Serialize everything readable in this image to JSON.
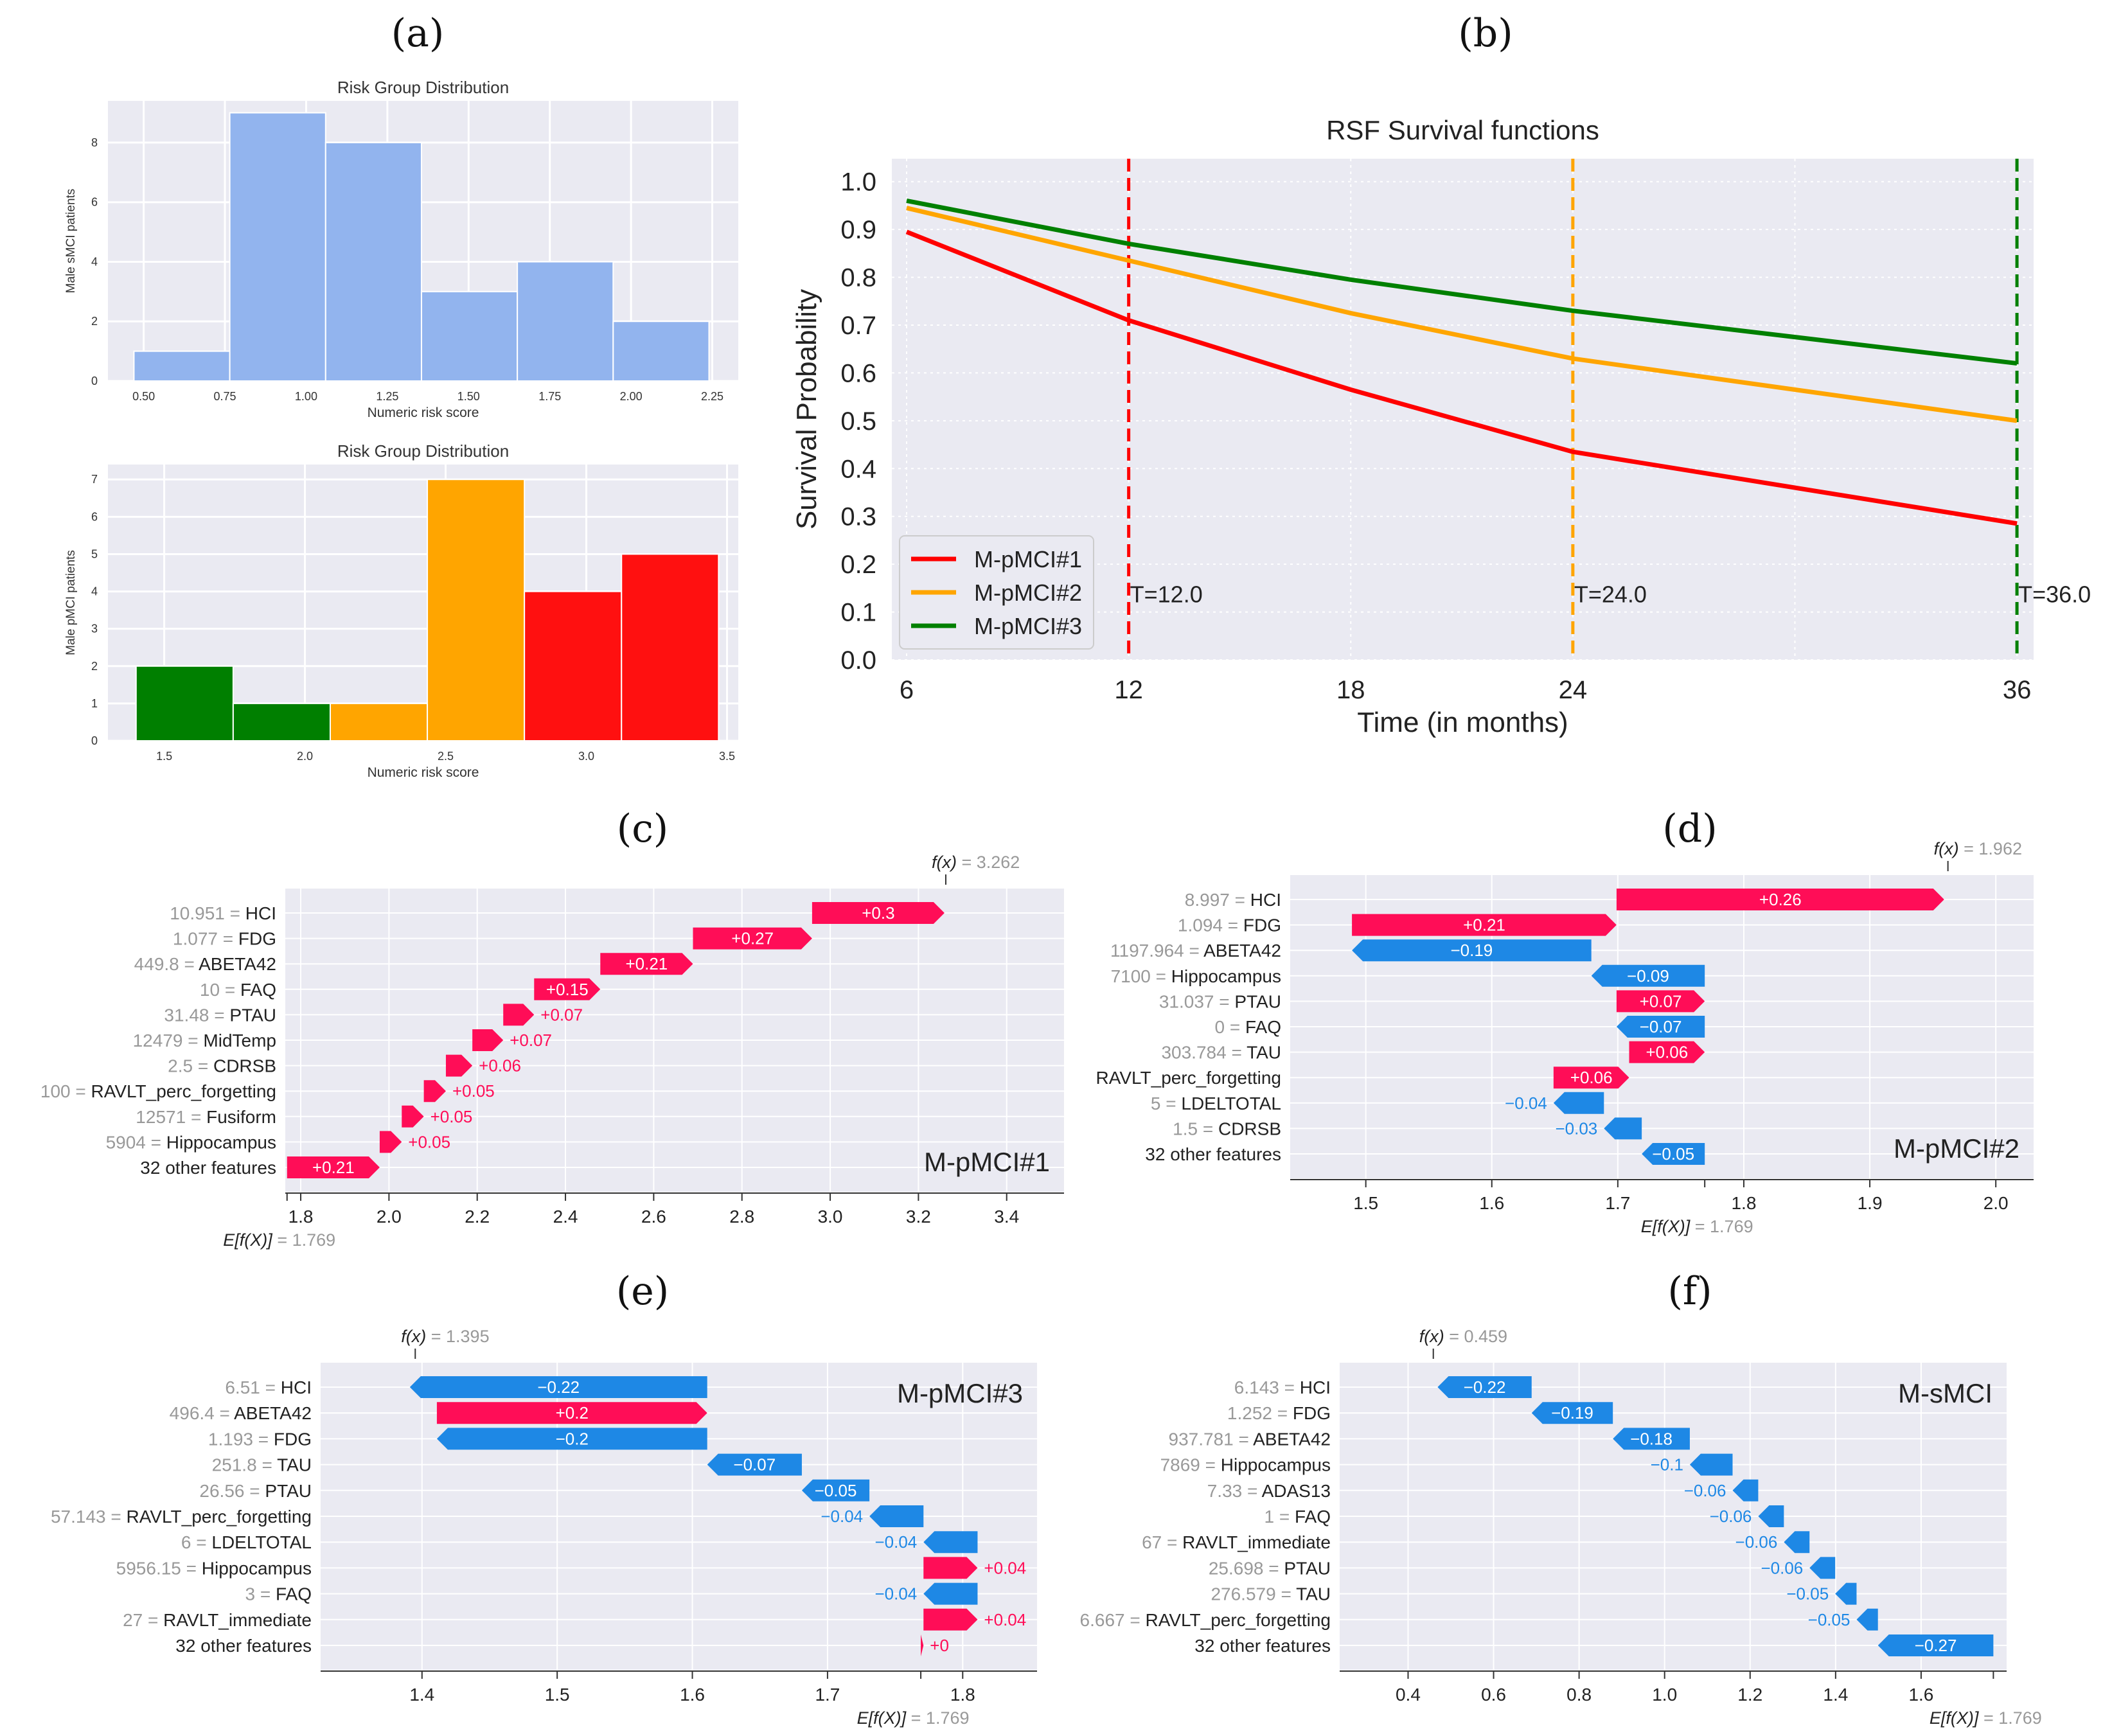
{
  "panel_labels": [
    "(a)",
    "(b)",
    "(c)",
    "(d)",
    "(e)",
    "(f)"
  ],
  "chart_data": [
    {
      "id": "a1",
      "type": "bar",
      "title": "Risk Group Distribution",
      "xlabel": "Numeric risk score",
      "ylabel": "Male sMCI patients",
      "bin_edges": [
        0.47,
        0.765,
        1.06,
        1.355,
        1.65,
        1.945,
        2.24
      ],
      "values": [
        1,
        9,
        8,
        3,
        4,
        2
      ],
      "colors": [
        "#92b4ee",
        "#92b4ee",
        "#92b4ee",
        "#92b4ee",
        "#92b4ee",
        "#92b4ee"
      ],
      "xticks": [
        "0.50",
        "0.75",
        "1.00",
        "1.25",
        "1.50",
        "1.75",
        "2.00",
        "2.25"
      ],
      "yticks": [
        "0",
        "2",
        "4",
        "6",
        "8"
      ],
      "xlim": [
        0.39,
        2.33
      ],
      "ylim": [
        0,
        9.4
      ]
    },
    {
      "id": "a2",
      "type": "bar",
      "title": "Risk Group Distribution",
      "xlabel": "Numeric risk score",
      "ylabel": "Male pMCI patients",
      "bin_edges": [
        1.4,
        1.745,
        2.09,
        2.435,
        2.78,
        3.125,
        3.47
      ],
      "values": [
        2,
        1,
        1,
        7,
        4,
        5
      ],
      "colors": [
        "#007f00",
        "#007f00",
        "#ffa500",
        "#ffa500",
        "#ff1010",
        "#ff1010"
      ],
      "xticks": [
        "1.5",
        "2.0",
        "2.5",
        "3.0",
        "3.5"
      ],
      "yticks": [
        "0",
        "1",
        "2",
        "3",
        "4",
        "5",
        "6",
        "7"
      ],
      "xlim": [
        1.3,
        3.54
      ],
      "ylim": [
        0,
        7.4
      ]
    },
    {
      "id": "b",
      "type": "line",
      "title": "RSF Survival functions",
      "xlabel": "Time (in months)",
      "ylabel": "Survival Probability",
      "x": [
        6,
        12,
        18,
        24,
        36
      ],
      "series": [
        {
          "name": "M-pMCI#1",
          "color": "#ff0000",
          "values": [
            0.895,
            0.71,
            0.565,
            0.435,
            0.285
          ]
        },
        {
          "name": "M-pMCI#2",
          "color": "#ffa500",
          "values": [
            0.945,
            0.835,
            0.725,
            0.63,
            0.5
          ]
        },
        {
          "name": "M-pMCI#3",
          "color": "#008000",
          "values": [
            0.96,
            0.87,
            0.795,
            0.73,
            0.62
          ]
        }
      ],
      "vlines": [
        {
          "x": 12,
          "label": "T=12.0",
          "color": "#ff0000"
        },
        {
          "x": 24,
          "label": "T=24.0",
          "color": "#ffa500"
        },
        {
          "x": 36,
          "label": "T=36.0",
          "color": "#008000"
        }
      ],
      "xticks": [
        "6",
        "12",
        "18",
        "24",
        "36"
      ],
      "yticks": [
        "0.0",
        "0.1",
        "0.2",
        "0.3",
        "0.4",
        "0.5",
        "0.6",
        "0.7",
        "0.8",
        "0.9",
        "1.0"
      ],
      "xlim": [
        5.6,
        36.45
      ],
      "ylim": [
        0,
        1.048
      ],
      "legend": "bottom-left"
    },
    {
      "id": "c",
      "type": "waterfall",
      "name": "M-pMCI#1",
      "name_pos": "bottom-right",
      "base": 1.769,
      "base_label": "1.769",
      "fx_label": "3.262",
      "fx": 3.262,
      "rows": [
        {
          "value": "10.951",
          "feature": "HCI",
          "shap": 0.3,
          "text": "+0.3"
        },
        {
          "value": "1.077",
          "feature": "FDG",
          "shap": 0.27,
          "text": "+0.27"
        },
        {
          "value": "449.8",
          "feature": "ABETA42",
          "shap": 0.21,
          "text": "+0.21"
        },
        {
          "value": "10",
          "feature": "FAQ",
          "shap": 0.15,
          "text": "+0.15"
        },
        {
          "value": "31.48",
          "feature": "PTAU",
          "shap": 0.07,
          "text": "+0.07"
        },
        {
          "value": "12479",
          "feature": "MidTemp",
          "shap": 0.07,
          "text": "+0.07"
        },
        {
          "value": "2.5",
          "feature": "CDRSB",
          "shap": 0.06,
          "text": "+0.06"
        },
        {
          "value": "100",
          "feature": "RAVLT_perc_forgetting",
          "shap": 0.05,
          "text": "+0.05"
        },
        {
          "value": "12571",
          "feature": "Fusiform",
          "shap": 0.05,
          "text": "+0.05"
        },
        {
          "value": "5904",
          "feature": "Hippocampus",
          "shap": 0.05,
          "text": "+0.05"
        },
        {
          "value": "",
          "feature": "32 other features",
          "shap": 0.21,
          "text": "+0.21"
        }
      ],
      "xticks": [
        "1.8",
        "2.0",
        "2.2",
        "2.4",
        "2.6",
        "2.8",
        "3.0",
        "3.2",
        "3.4"
      ],
      "xlim": [
        1.765,
        3.53
      ]
    },
    {
      "id": "d",
      "type": "waterfall",
      "name": "M-pMCI#2",
      "name_pos": "bottom-right",
      "base": 1.769,
      "base_label": "1.769",
      "fx_label": "1.962",
      "fx": 1.962,
      "rows": [
        {
          "value": "8.997",
          "feature": "HCI",
          "shap": 0.26,
          "text": "+0.26"
        },
        {
          "value": "1.094",
          "feature": "FDG",
          "shap": 0.21,
          "text": "+0.21"
        },
        {
          "value": "1197.964",
          "feature": "ABETA42",
          "shap": -0.19,
          "text": "−0.19"
        },
        {
          "value": "7100",
          "feature": "Hippocampus",
          "shap": -0.09,
          "text": "−0.09"
        },
        {
          "value": "31.037",
          "feature": "PTAU",
          "shap": 0.07,
          "text": "+0.07"
        },
        {
          "value": "0",
          "feature": "FAQ",
          "shap": -0.07,
          "text": "−0.07"
        },
        {
          "value": "303.784",
          "feature": "TAU",
          "shap": 0.06,
          "text": "+0.06"
        },
        {
          "value": "",
          "feature": "RAVLT_perc_forgetting",
          "shap": 0.06,
          "text": "+0.06"
        },
        {
          "value": "5",
          "feature": "LDELTOTAL",
          "shap": -0.04,
          "text": "−0.04"
        },
        {
          "value": "1.5",
          "feature": "CDRSB",
          "shap": -0.03,
          "text": "−0.03"
        },
        {
          "value": "",
          "feature": "32 other features",
          "shap": -0.05,
          "text": "−0.05"
        }
      ],
      "xticks": [
        "1.5",
        "1.6",
        "1.7",
        "1.8",
        "1.9",
        "2.0"
      ],
      "xlim": [
        1.44,
        2.03
      ]
    },
    {
      "id": "e",
      "type": "waterfall",
      "name": "M-pMCI#3",
      "name_pos": "top-right",
      "base": 1.769,
      "base_label": "1.769",
      "fx_label": "1.395",
      "fx": 1.395,
      "rows": [
        {
          "value": "6.51",
          "feature": "HCI",
          "shap": -0.22,
          "text": "−0.22"
        },
        {
          "value": "496.4",
          "feature": "ABETA42",
          "shap": 0.2,
          "text": "+0.2"
        },
        {
          "value": "1.193",
          "feature": "FDG",
          "shap": -0.2,
          "text": "−0.2"
        },
        {
          "value": "251.8",
          "feature": "TAU",
          "shap": -0.07,
          "text": "−0.07"
        },
        {
          "value": "26.56",
          "feature": "PTAU",
          "shap": -0.05,
          "text": "−0.05"
        },
        {
          "value": "57.143",
          "feature": "RAVLT_perc_forgetting",
          "shap": -0.04,
          "text": "−0.04"
        },
        {
          "value": "6",
          "feature": "LDELTOTAL",
          "shap": -0.04,
          "text": "−0.04"
        },
        {
          "value": "5956.15",
          "feature": "Hippocampus",
          "shap": 0.04,
          "text": "+0.04"
        },
        {
          "value": "3",
          "feature": "FAQ",
          "shap": -0.04,
          "text": "−0.04"
        },
        {
          "value": "27",
          "feature": "RAVLT_immediate",
          "shap": 0.04,
          "text": "+0.04"
        },
        {
          "value": "",
          "feature": "32 other features",
          "shap": 0.002,
          "text": "+0"
        }
      ],
      "xticks": [
        "1.4",
        "1.5",
        "1.6",
        "1.7",
        "1.8"
      ],
      "xlim": [
        1.325,
        1.855
      ]
    },
    {
      "id": "f",
      "type": "waterfall",
      "name": "M-sMCI",
      "name_pos": "top-right",
      "base": 1.769,
      "base_label": "1.769",
      "fx_label": "0.459",
      "fx": 0.459,
      "rows": [
        {
          "value": "6.143",
          "feature": "HCI",
          "shap": -0.22,
          "text": "−0.22"
        },
        {
          "value": "1.252",
          "feature": "FDG",
          "shap": -0.19,
          "text": "−0.19"
        },
        {
          "value": "937.781",
          "feature": "ABETA42",
          "shap": -0.18,
          "text": "−0.18"
        },
        {
          "value": "7869",
          "feature": "Hippocampus",
          "shap": -0.1,
          "text": "−0.1"
        },
        {
          "value": "7.33",
          "feature": "ADAS13",
          "shap": -0.06,
          "text": "−0.06"
        },
        {
          "value": "1",
          "feature": "FAQ",
          "shap": -0.06,
          "text": "−0.06"
        },
        {
          "value": "67",
          "feature": "RAVLT_immediate",
          "shap": -0.06,
          "text": "−0.06"
        },
        {
          "value": "25.698",
          "feature": "PTAU",
          "shap": -0.06,
          "text": "−0.06"
        },
        {
          "value": "276.579",
          "feature": "TAU",
          "shap": -0.05,
          "text": "−0.05"
        },
        {
          "value": "6.667",
          "feature": "RAVLT_perc_forgetting",
          "shap": -0.05,
          "text": "−0.05"
        },
        {
          "value": "",
          "feature": "32 other features",
          "shap": -0.27,
          "text": "−0.27"
        }
      ],
      "xticks": [
        "0.4",
        "0.6",
        "0.8",
        "1.0",
        "1.2",
        "1.4",
        "1.6"
      ],
      "xlim": [
        0.24,
        1.8
      ]
    }
  ],
  "colors": {
    "positive": "#ff0d57",
    "negative": "#1e88e5",
    "plot_bg": "#eaeaf2"
  }
}
